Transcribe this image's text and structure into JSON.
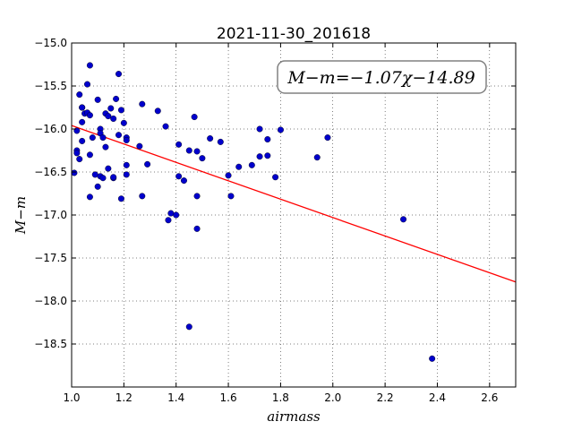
{
  "chart_data": {
    "type": "scatter",
    "title": "2021-11-30_201618",
    "xlabel": "airmass",
    "ylabel": "M−m",
    "xlim": [
      1.0,
      2.7
    ],
    "ylim": [
      -19.0,
      -15.0
    ],
    "x_ticks": [
      1.0,
      1.2,
      1.4,
      1.6,
      1.8,
      2.0,
      2.2,
      2.4,
      2.6
    ],
    "x_tick_labels": [
      "1.0",
      "1.2",
      "1.4",
      "1.6",
      "1.8",
      "2.0",
      "2.2",
      "2.4",
      "2.6"
    ],
    "y_ticks": [
      -15.0,
      -15.5,
      -16.0,
      -16.5,
      -17.0,
      -17.5,
      -18.0,
      -18.5
    ],
    "y_tick_labels": [
      "−15.0",
      "−15.5",
      "−16.0",
      "−16.5",
      "−17.0",
      "−17.5",
      "−18.0",
      "−18.5"
    ],
    "grid": true,
    "annotation": "M−m=−1.07χ−14.89",
    "fit": {
      "slope": -1.07,
      "intercept": -14.89,
      "color": "#ff0000"
    },
    "point_color": "#0000cc",
    "points": [
      [
        1.01,
        -16.51
      ],
      [
        1.02,
        -16.25
      ],
      [
        1.02,
        -16.28
      ],
      [
        1.02,
        -16.02
      ],
      [
        1.03,
        -16.35
      ],
      [
        1.03,
        -15.6
      ],
      [
        1.04,
        -15.75
      ],
      [
        1.04,
        -15.75
      ],
      [
        1.04,
        -15.92
      ],
      [
        1.04,
        -16.14
      ],
      [
        1.05,
        -15.82
      ],
      [
        1.06,
        -15.48
      ],
      [
        1.06,
        -15.81
      ],
      [
        1.07,
        -15.84
      ],
      [
        1.07,
        -15.26
      ],
      [
        1.07,
        -16.3
      ],
      [
        1.07,
        -16.79
      ],
      [
        1.08,
        -16.1
      ],
      [
        1.09,
        -16.53
      ],
      [
        1.1,
        -16.67
      ],
      [
        1.1,
        -15.66
      ],
      [
        1.11,
        -16.0
      ],
      [
        1.11,
        -16.05
      ],
      [
        1.11,
        -16.55
      ],
      [
        1.12,
        -16.1
      ],
      [
        1.12,
        -16.57
      ],
      [
        1.13,
        -16.21
      ],
      [
        1.13,
        -15.82
      ],
      [
        1.14,
        -15.85
      ],
      [
        1.14,
        -16.46
      ],
      [
        1.15,
        -15.76
      ],
      [
        1.16,
        -15.88
      ],
      [
        1.16,
        -16.57
      ],
      [
        1.16,
        -16.56
      ],
      [
        1.17,
        -15.65
      ],
      [
        1.18,
        -15.36
      ],
      [
        1.18,
        -16.07
      ],
      [
        1.19,
        -15.78
      ],
      [
        1.19,
        -16.81
      ],
      [
        1.2,
        -15.93
      ],
      [
        1.21,
        -16.1
      ],
      [
        1.21,
        -16.13
      ],
      [
        1.21,
        -16.42
      ],
      [
        1.21,
        -16.53
      ],
      [
        1.26,
        -16.2
      ],
      [
        1.27,
        -15.71
      ],
      [
        1.27,
        -16.78
      ],
      [
        1.29,
        -16.41
      ],
      [
        1.33,
        -15.79
      ],
      [
        1.36,
        -15.97
      ],
      [
        1.37,
        -17.06
      ],
      [
        1.38,
        -16.98
      ],
      [
        1.4,
        -17.0
      ],
      [
        1.41,
        -16.18
      ],
      [
        1.41,
        -16.55
      ],
      [
        1.43,
        -16.6
      ],
      [
        1.45,
        -16.25
      ],
      [
        1.45,
        -18.3
      ],
      [
        1.47,
        -15.86
      ],
      [
        1.48,
        -16.26
      ],
      [
        1.48,
        -16.78
      ],
      [
        1.48,
        -17.16
      ],
      [
        1.5,
        -16.34
      ],
      [
        1.53,
        -16.11
      ],
      [
        1.57,
        -16.15
      ],
      [
        1.6,
        -16.54
      ],
      [
        1.61,
        -16.78
      ],
      [
        1.64,
        -16.44
      ],
      [
        1.69,
        -16.42
      ],
      [
        1.72,
        -16.0
      ],
      [
        1.72,
        -16.32
      ],
      [
        1.75,
        -16.12
      ],
      [
        1.75,
        -16.31
      ],
      [
        1.78,
        -16.56
      ],
      [
        1.8,
        -16.01
      ],
      [
        1.94,
        -16.33
      ],
      [
        1.98,
        -16.1
      ],
      [
        2.27,
        -17.05
      ],
      [
        2.38,
        -18.67
      ]
    ]
  }
}
